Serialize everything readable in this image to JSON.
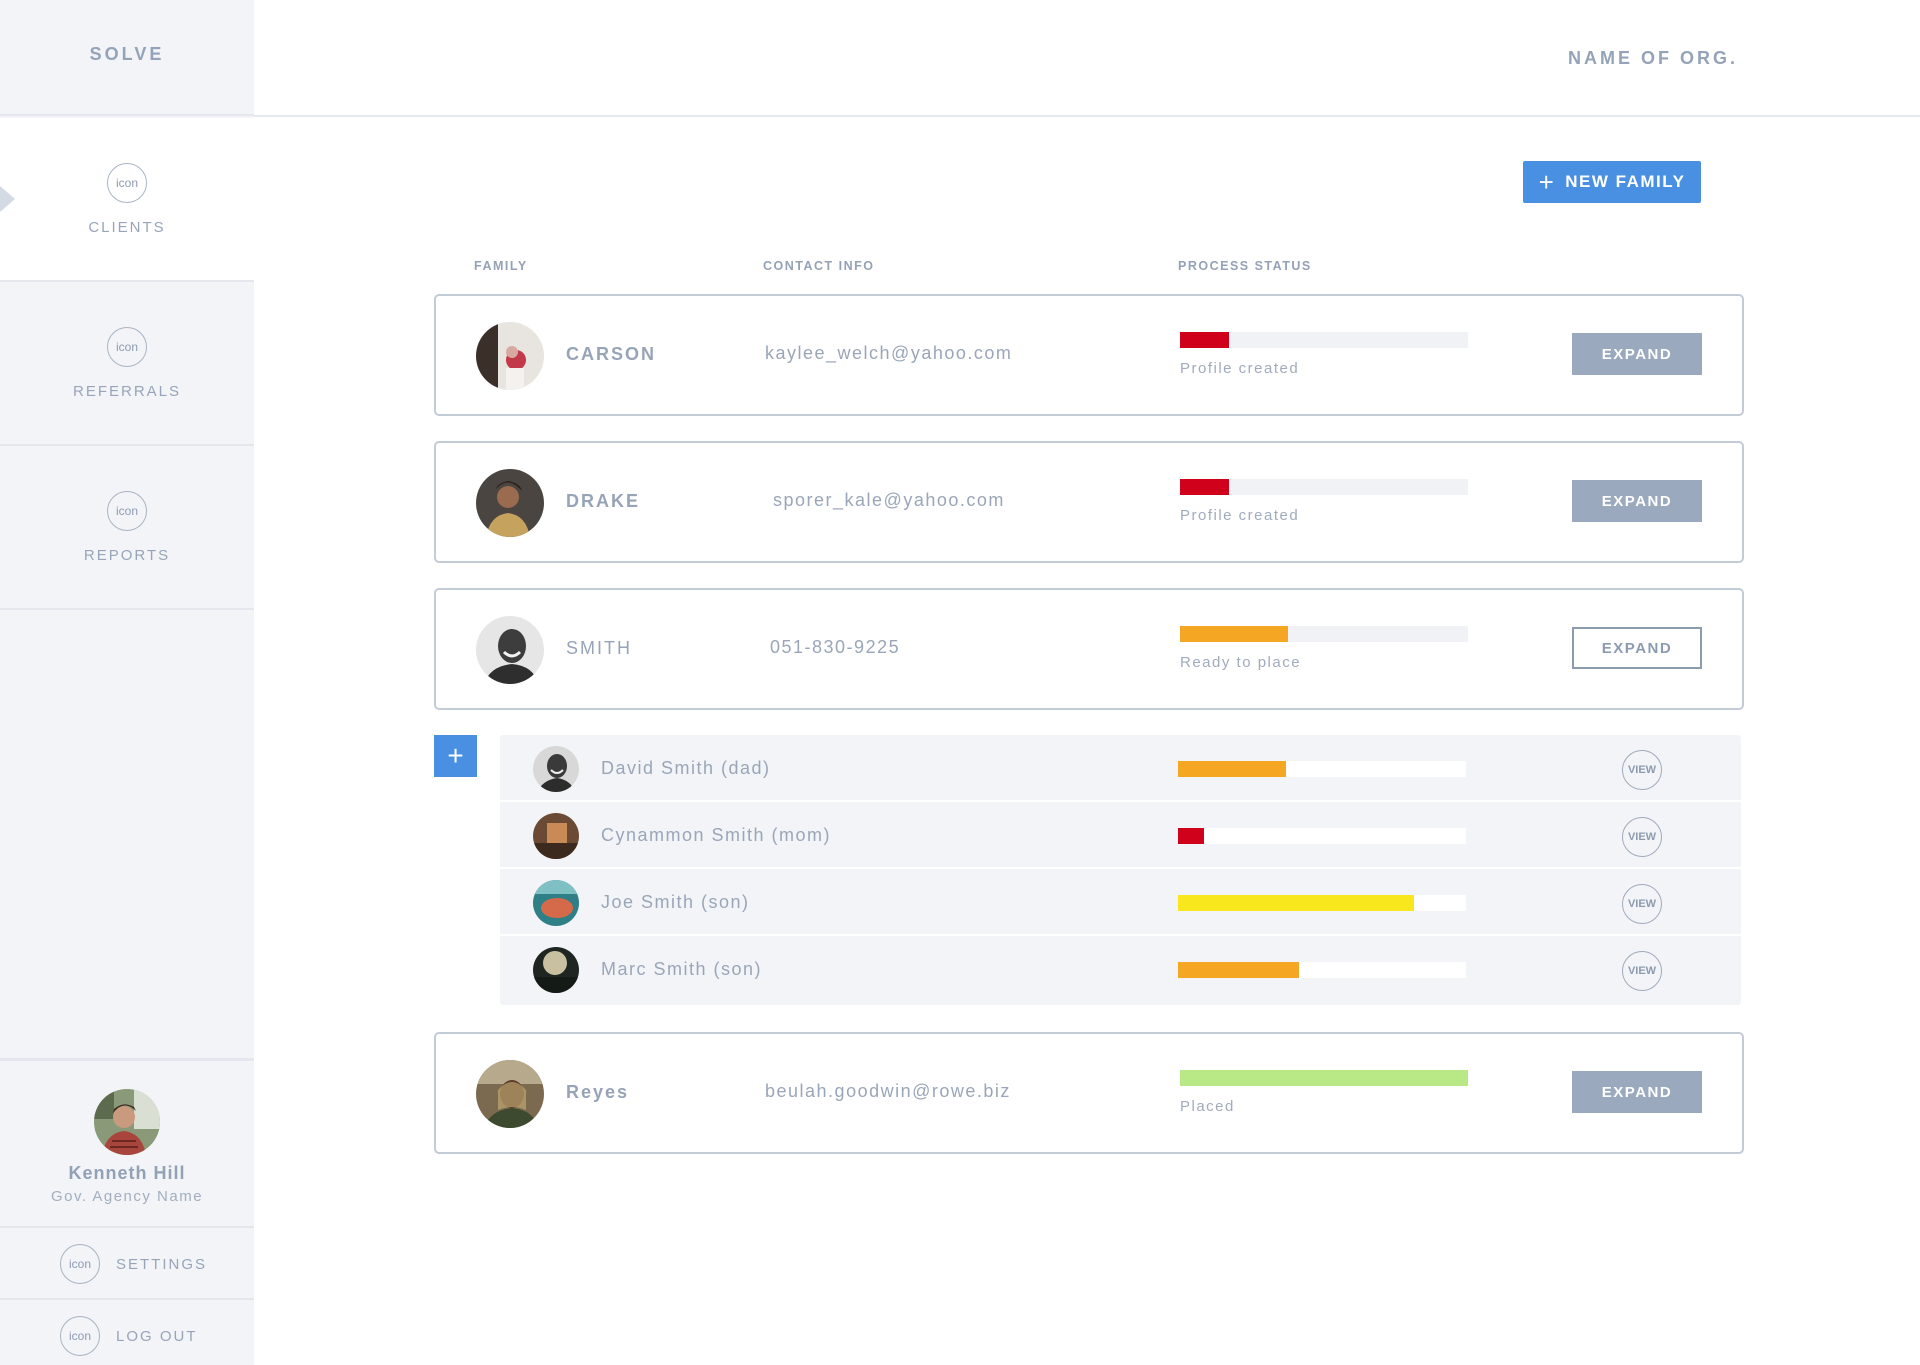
{
  "app": {
    "brand": "SOLVE",
    "org": "NAME OF ORG."
  },
  "nav": [
    {
      "label": "CLIENTS",
      "icon_text": "icon",
      "active": true
    },
    {
      "label": "REFERRALS",
      "icon_text": "icon"
    },
    {
      "label": "REPORTS",
      "icon_text": "icon"
    }
  ],
  "user": {
    "name": "Kenneth Hill",
    "agency": "Gov. Agency Name"
  },
  "footer": [
    {
      "label": "SETTINGS",
      "icon_text": "icon"
    },
    {
      "label": "LOG OUT",
      "icon_text": "icon"
    }
  ],
  "actions": {
    "new_family": "NEW FAMILY"
  },
  "columns": {
    "family": "FAMILY",
    "contact": "CONTACT INFO",
    "status": "PROCESS STATUS"
  },
  "families": [
    {
      "name": "CARSON",
      "contact": "kaylee_welch@yahoo.com",
      "status": "Profile created",
      "progress": 0.17,
      "color": "#d0021b",
      "button": "EXPAND"
    },
    {
      "name": "DRAKE",
      "contact": "sporer_kale@yahoo.com",
      "status": "Profile created",
      "progress": 0.17,
      "color": "#d0021b",
      "button": "EXPAND"
    },
    {
      "name": "SMITH",
      "contact": "051-830-9225",
      "status": "Ready to place",
      "progress": 0.375,
      "color": "#f5a623",
      "button": "EXPAND"
    },
    {
      "name": "Reyes",
      "contact": "beulah.goodwin@rowe.biz",
      "status": "Placed",
      "progress": 1.0,
      "color": "#b8e986",
      "button": "EXPAND"
    }
  ],
  "members": [
    {
      "name": "David Smith (dad)",
      "progress": 0.375,
      "color": "#f5a623",
      "button": "VIEW"
    },
    {
      "name": "Cynammon Smith (mom)",
      "progress": 0.09,
      "color": "#d0021b",
      "button": "VIEW"
    },
    {
      "name": "Joe Smith (son)",
      "progress": 0.82,
      "color": "#f8e71c",
      "button": "VIEW"
    },
    {
      "name": "Marc Smith (son)",
      "progress": 0.42,
      "color": "#f5a623",
      "button": "VIEW"
    }
  ]
}
